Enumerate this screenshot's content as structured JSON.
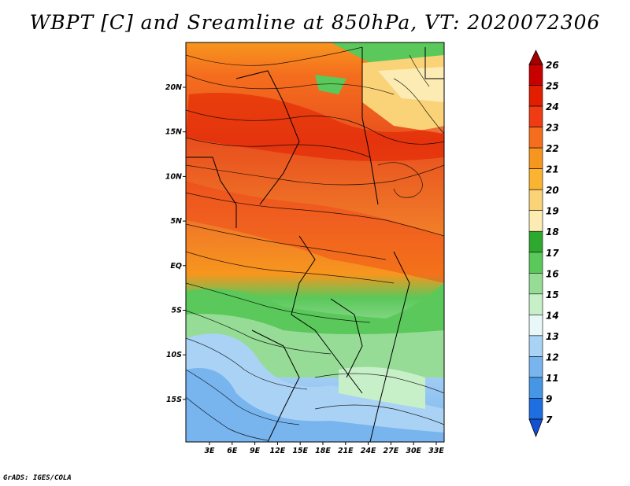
{
  "title": "WBPT [C] and Sreamline at 850hPa, VT: 2020072306",
  "credit": "GrADS: IGES/COLA",
  "map": {
    "lat_labels": [
      "20N",
      "15N",
      "10N",
      "5N",
      "EQ",
      "5S",
      "10S",
      "15S"
    ],
    "lon_labels": [
      "3E",
      "6E",
      "9E",
      "12E",
      "15E",
      "18E",
      "21E",
      "24E",
      "27E",
      "30E",
      "33E"
    ],
    "fields": [
      "WBPT",
      "Streamline"
    ],
    "level": "850hPa",
    "valid_time": "2020072306"
  },
  "colorbar": {
    "labels": [
      "26",
      "25",
      "24",
      "23",
      "22",
      "21",
      "20",
      "19",
      "18",
      "17",
      "16",
      "15",
      "14",
      "13",
      "12",
      "11",
      "9",
      "7"
    ],
    "colors": [
      "#a50000",
      "#c80000",
      "#e11e00",
      "#f03c14",
      "#f56e1e",
      "#f7961e",
      "#fab432",
      "#fad278",
      "#fcecb4",
      "#2ea82e",
      "#5ac85a",
      "#96dc96",
      "#c8f0c8",
      "#e8f8f8",
      "#aad2f5",
      "#78b4ee",
      "#4696e6",
      "#1e6ee1",
      "#1450d2"
    ]
  }
}
